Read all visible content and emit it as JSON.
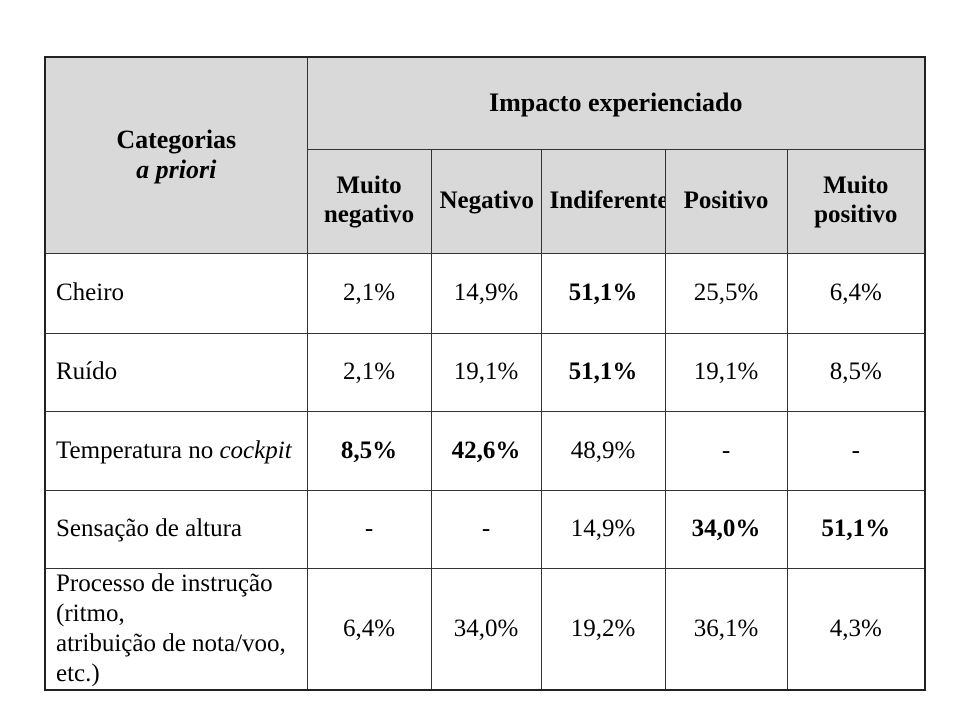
{
  "table": {
    "corner_line1": "Categorias",
    "corner_line2": "a priori",
    "group_header": "Impacto experienciado",
    "columns": [
      {
        "line1": "Muito",
        "line2": "negativo"
      },
      {
        "line1": "Negativo",
        "line2": ""
      },
      {
        "line1": "Indiferente",
        "line2": ""
      },
      {
        "line1": "Positivo",
        "line2": ""
      },
      {
        "line1": "Muito",
        "line2": "positivo"
      }
    ],
    "rows": [
      {
        "category": "Cheiro",
        "category_italic": "",
        "category_line2": "",
        "values": [
          "2,1%",
          "14,9%",
          "51,1%",
          "25,5%",
          "6,4%"
        ],
        "bold": [
          false,
          false,
          true,
          false,
          false
        ]
      },
      {
        "category": "Ruído",
        "category_italic": "",
        "category_line2": "",
        "values": [
          "2,1%",
          "19,1%",
          "51,1%",
          "19,1%",
          "8,5%"
        ],
        "bold": [
          false,
          false,
          true,
          false,
          false
        ]
      },
      {
        "category": "Temperatura no ",
        "category_italic": "cockpit",
        "category_line2": "",
        "values": [
          "8,5%",
          "42,6%",
          "48,9%",
          "-",
          "-"
        ],
        "bold": [
          true,
          true,
          false,
          false,
          false
        ]
      },
      {
        "category": "Sensação de altura",
        "category_italic": "",
        "category_line2": "",
        "values": [
          "-",
          "-",
          "14,9%",
          "34,0%",
          "51,1%"
        ],
        "bold": [
          false,
          false,
          false,
          true,
          true
        ]
      },
      {
        "category": "Processo de instrução (ritmo,",
        "category_italic": "",
        "category_line2": "atribuição de nota/voo, etc.)",
        "values": [
          "6,4%",
          "34,0%",
          "19,2%",
          "36,1%",
          "4,3%"
        ],
        "bold": [
          false,
          false,
          false,
          false,
          false
        ]
      }
    ]
  }
}
